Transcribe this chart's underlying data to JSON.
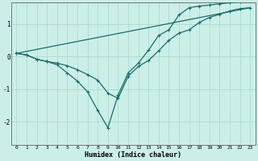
{
  "xlabel": "Humidex (Indice chaleur)",
  "background_color": "#cceee8",
  "line_color": "#1a6b6b",
  "grid_color": "#aaddcc",
  "xlim": [
    -0.5,
    23.5
  ],
  "ylim": [
    -2.7,
    1.65
  ],
  "xticks": [
    0,
    1,
    2,
    3,
    4,
    5,
    6,
    7,
    8,
    9,
    10,
    11,
    12,
    13,
    14,
    15,
    16,
    17,
    18,
    19,
    20,
    21,
    22,
    23
  ],
  "yticks": [
    -2,
    -1,
    0,
    1
  ],
  "line1_x": [
    0,
    23
  ],
  "line1_y": [
    0.1,
    1.5
  ],
  "line2_x": [
    0,
    1,
    2,
    3,
    4,
    5,
    6,
    7,
    8,
    9,
    10,
    11,
    12,
    13,
    14,
    15,
    16,
    17,
    18,
    19,
    20,
    21,
    22,
    23
  ],
  "line2_y": [
    0.1,
    0.05,
    -0.08,
    -0.15,
    -0.2,
    -0.28,
    -0.4,
    -0.55,
    -0.72,
    -1.12,
    -1.28,
    -0.6,
    -0.3,
    -0.12,
    0.18,
    0.5,
    0.72,
    0.82,
    1.05,
    1.2,
    1.3,
    1.4,
    1.47,
    1.5
  ],
  "line3_x": [
    0,
    1,
    2,
    3,
    4,
    5,
    6,
    7,
    8,
    9,
    10,
    11,
    12,
    13,
    14,
    15,
    16,
    17,
    18,
    19,
    20,
    21,
    22,
    23
  ],
  "line3_y": [
    0.1,
    0.05,
    -0.08,
    -0.15,
    -0.25,
    -0.5,
    -0.75,
    -1.08,
    -1.65,
    -2.18,
    -1.18,
    -0.5,
    -0.2,
    0.2,
    0.65,
    0.82,
    1.28,
    1.5,
    1.55,
    1.58,
    1.62,
    1.65,
    1.68,
    1.7
  ]
}
